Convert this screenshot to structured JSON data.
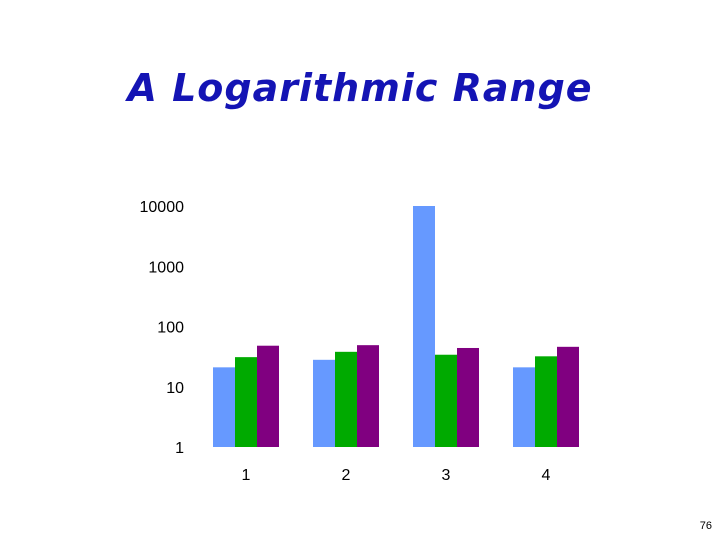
{
  "slide": {
    "title": "A Logarithmic Range",
    "page_number": "76"
  },
  "chart_data": {
    "type": "bar",
    "scale": "log",
    "title": "",
    "xlabel": "",
    "ylabel": "",
    "categories": [
      "1",
      "2",
      "3",
      "4"
    ],
    "y_ticks": [
      "10000",
      "1000",
      "100",
      "10",
      "1"
    ],
    "ylim": [
      1,
      10000
    ],
    "grid": false,
    "legend": "none",
    "series": [
      {
        "color": "#6699ff",
        "values": [
          21,
          28,
          10000,
          21
        ]
      },
      {
        "color": "#00aa00",
        "values": [
          31,
          38,
          34,
          32
        ]
      },
      {
        "color": "#800080",
        "values": [
          48,
          49,
          44,
          46
        ]
      }
    ]
  }
}
